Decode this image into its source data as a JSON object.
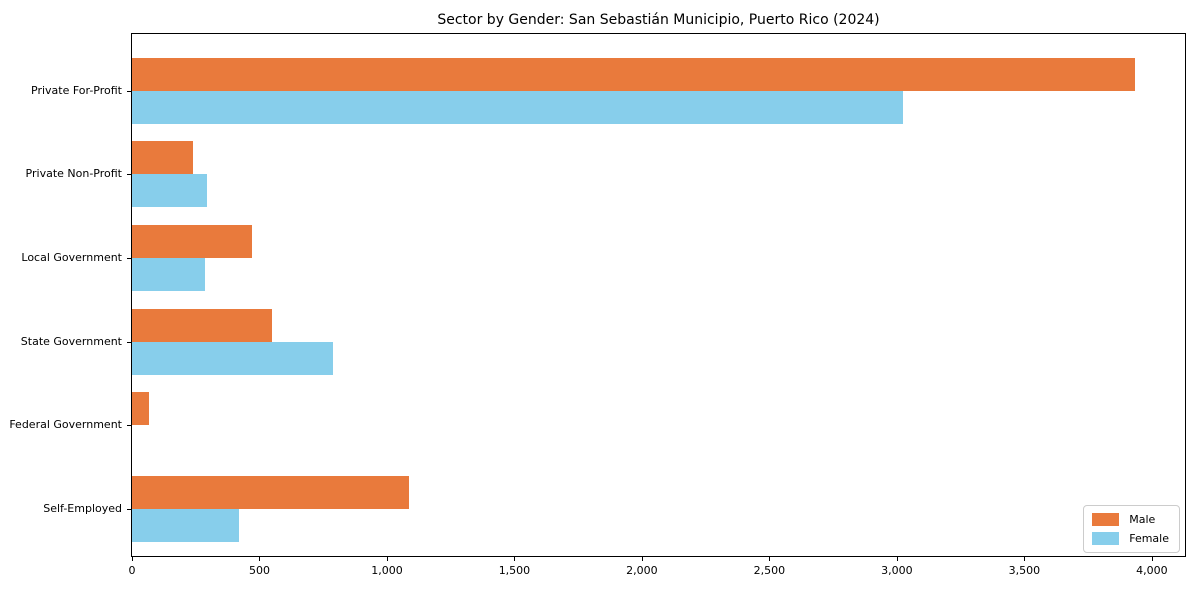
{
  "title": "Sector by Gender: San Sebastián Municipio, Puerto Rico (2024)",
  "colors": {
    "male": "#E97A3C",
    "female": "#87CEEB",
    "spine": "#000000",
    "legend_border": "#CCCCCC",
    "background": "#FFFFFF",
    "text": "#000000"
  },
  "legend": {
    "position": "lower right",
    "items": [
      {
        "label": "Male",
        "color": "#E97A3C"
      },
      {
        "label": "Female",
        "color": "#87CEEB"
      }
    ]
  },
  "chart_data": {
    "type": "bar",
    "orientation": "horizontal",
    "title": "Sector by Gender: San Sebastián Municipio, Puerto Rico (2024)",
    "categories": [
      "Private For-Profit",
      "Private Non-Profit",
      "Local Government",
      "State Government",
      "Federal Government",
      "Self-Employed"
    ],
    "series": [
      {
        "name": "Male",
        "color": "#E97A3C",
        "values": [
          3935,
          240,
          470,
          550,
          65,
          1085
        ]
      },
      {
        "name": "Female",
        "color": "#87CEEB",
        "values": [
          3025,
          295,
          285,
          790,
          0,
          420
        ]
      }
    ],
    "xlabel": "",
    "ylabel": "",
    "xlim": [
      0,
      4130
    ],
    "xticks": [
      0,
      500,
      1000,
      1500,
      2000,
      2500,
      3000,
      3500,
      4000
    ],
    "xtick_labels": [
      "0",
      "500",
      "1,000",
      "1,500",
      "2,000",
      "2,500",
      "3,000",
      "3,500",
      "4,000"
    ],
    "grid": false,
    "legend_position": "lower right"
  }
}
